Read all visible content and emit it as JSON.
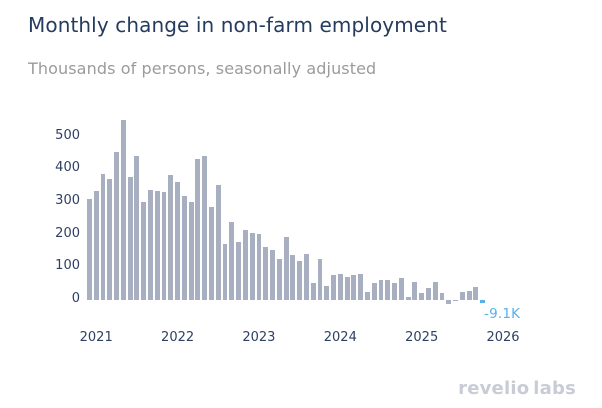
{
  "title": "Monthly change in non-farm employment",
  "subtitle": "Thousands of persons, seasonally adjusted",
  "logo": {
    "part1": "revelio",
    "part2": "labs"
  },
  "chart_data": {
    "type": "bar",
    "title": "Monthly change in non-farm employment",
    "subtitle": "Thousands of persons, seasonally adjusted",
    "unit": "thousands of persons",
    "x": [
      "2020-12",
      "2021-01",
      "2021-02",
      "2021-03",
      "2021-04",
      "2021-05",
      "2021-06",
      "2021-07",
      "2021-08",
      "2021-09",
      "2021-10",
      "2021-11",
      "2021-12",
      "2022-01",
      "2022-02",
      "2022-03",
      "2022-04",
      "2022-05",
      "2022-06",
      "2022-07",
      "2022-08",
      "2022-09",
      "2022-10",
      "2022-11",
      "2022-12",
      "2023-01",
      "2023-02",
      "2023-03",
      "2023-04",
      "2023-05",
      "2023-06",
      "2023-07",
      "2023-08",
      "2023-09",
      "2023-10",
      "2023-11",
      "2023-12",
      "2024-01",
      "2024-02",
      "2024-03",
      "2024-04",
      "2024-05",
      "2024-06",
      "2024-07",
      "2024-08",
      "2024-09",
      "2024-10",
      "2024-11",
      "2024-12",
      "2025-01",
      "2025-02",
      "2025-03",
      "2025-04",
      "2025-05",
      "2025-06",
      "2025-07",
      "2025-08",
      "2025-09",
      "2025-10"
    ],
    "values": [
      310,
      334,
      384,
      370,
      454,
      549,
      376,
      439,
      301,
      337,
      332,
      329,
      381,
      362,
      317,
      300,
      430,
      440,
      284,
      353,
      172,
      240,
      178,
      213,
      206,
      203,
      161,
      154,
      126,
      192,
      137,
      120,
      140,
      52,
      124,
      43,
      76,
      80,
      71,
      77,
      78,
      25,
      51,
      61,
      61,
      51,
      68,
      8,
      56,
      22,
      36,
      56,
      20,
      -12,
      -3,
      25,
      28,
      40,
      -9.1
    ],
    "y_ticks": [
      0,
      100,
      200,
      300,
      400,
      500
    ],
    "x_tick_years": [
      "2021",
      "2022",
      "2023",
      "2024",
      "2025",
      "2026"
    ],
    "ylim": [
      -20,
      600
    ],
    "grid": false,
    "legend": false,
    "bar_color": "#a8afc0",
    "highlight_color": "#55b1ea",
    "highlight_last": true,
    "annotation": {
      "text": "-9.1K",
      "value": -9.1,
      "month": "2025-10"
    }
  }
}
